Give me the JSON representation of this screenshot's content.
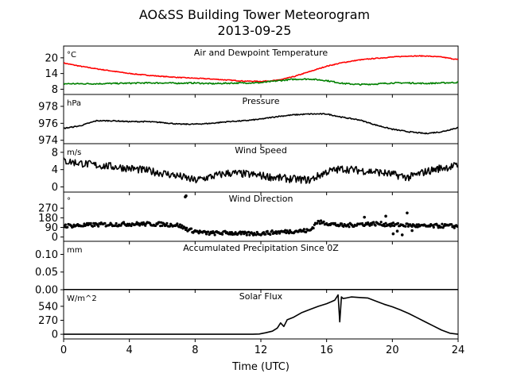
{
  "figure": {
    "title_line1": "AO&SS Building Tower Meteorogram",
    "title_line2": "2013-09-25",
    "xlabel": "Time (UTC)"
  },
  "chart_data": [
    {
      "type": "line",
      "title": "Air and Dewpoint Temperature",
      "unit": "°C",
      "ylim": [
        6,
        24.5
      ],
      "yticks": [
        8,
        14,
        20
      ],
      "xlim": [
        0,
        24
      ],
      "series": [
        {
          "color": "#ff0000",
          "noise": 0.15,
          "x": [
            0,
            1,
            2,
            3,
            4,
            5,
            6,
            7,
            8,
            9,
            10,
            11,
            12,
            13,
            14,
            15,
            16,
            17,
            18,
            19,
            20,
            21,
            22,
            23,
            24
          ],
          "y": [
            18,
            16.8,
            15.8,
            14.9,
            14,
            13.4,
            12.9,
            12.5,
            12.2,
            11.9,
            11.5,
            11.1,
            11,
            11.4,
            12.8,
            14.8,
            16.8,
            18.2,
            19.2,
            19.8,
            20.3,
            20.7,
            20.7,
            20.3,
            19.3
          ]
        },
        {
          "color": "#008000",
          "noise": 0.25,
          "x": [
            0,
            1,
            2,
            3,
            4,
            5,
            6,
            7,
            8,
            9,
            10,
            11,
            12,
            13,
            14,
            15,
            16,
            17,
            18,
            19,
            20,
            21,
            22,
            23,
            24
          ],
          "y": [
            10.1,
            10.1,
            10.1,
            10.2,
            10.3,
            10.4,
            10.4,
            10.3,
            10.4,
            10.1,
            10.3,
            10.4,
            10.5,
            11.2,
            11.8,
            11.9,
            11.3,
            10.2,
            9.8,
            10,
            10.4,
            10.4,
            10.2,
            10.4,
            10.6
          ]
        }
      ]
    },
    {
      "type": "line",
      "title": "Pressure",
      "unit": "hPa",
      "ylim": [
        973.6,
        979.4
      ],
      "yticks": [
        974,
        976,
        978
      ],
      "xlim": [
        0,
        24
      ],
      "series": [
        {
          "color": "#000000",
          "noise": 0.06,
          "x": [
            0,
            1,
            2,
            3,
            4,
            5,
            6,
            7,
            8,
            9,
            10,
            11,
            12,
            13,
            14,
            15,
            16,
            17,
            18,
            19,
            20,
            21,
            22,
            23,
            24
          ],
          "y": [
            975.4,
            975.7,
            976.3,
            976.3,
            976.2,
            976.2,
            976.1,
            975.9,
            975.9,
            976,
            976.2,
            976.3,
            976.5,
            976.8,
            977,
            977.1,
            977.1,
            976.7,
            976.4,
            975.8,
            975.3,
            975,
            974.8,
            975,
            975.5
          ]
        }
      ]
    },
    {
      "type": "line",
      "title": "Wind Speed",
      "unit": "m/s",
      "ylim": [
        -1.2,
        10
      ],
      "yticks": [
        0,
        4,
        8
      ],
      "xlim": [
        0,
        24
      ],
      "series": [
        {
          "color": "#000000",
          "noise": 0.9,
          "x": [
            0,
            1,
            2,
            3,
            4,
            5,
            6,
            7,
            8,
            9,
            10,
            11,
            12,
            13,
            14,
            15,
            16,
            17,
            18,
            19,
            20,
            21,
            22,
            23,
            24
          ],
          "y": [
            6,
            5.5,
            5,
            4.7,
            4.3,
            3.8,
            3.2,
            2.5,
            1.5,
            2.4,
            3.2,
            3,
            2.6,
            2.1,
            1.8,
            1.6,
            3.5,
            4.2,
            3.8,
            3.5,
            2.9,
            2.2,
            3.5,
            4.4,
            4.9
          ]
        }
      ]
    },
    {
      "type": "scatter",
      "title": "Wind Direction",
      "unit": "°",
      "ylim": [
        -40,
        420
      ],
      "yticks": [
        0,
        90,
        180,
        270
      ],
      "xlim": [
        0,
        24
      ],
      "series": [
        {
          "color": "#000000",
          "noise": 18,
          "x": [
            0,
            1,
            2,
            3,
            4,
            5,
            6,
            7,
            7.4,
            7.8,
            8.5,
            9,
            10,
            11,
            12,
            13,
            14,
            15,
            15.4,
            16,
            17,
            18,
            19,
            20,
            21,
            22,
            23,
            24
          ],
          "y": [
            105,
            108,
            115,
            118,
            122,
            122,
            120,
            110,
            80,
            60,
            40,
            35,
            40,
            30,
            35,
            45,
            55,
            60,
            140,
            130,
            105,
            120,
            125,
            115,
            110,
            100,
            105,
            100
          ]
        },
        {
          "color": "#000000",
          "noise": 0,
          "x": [
            7.4,
            7.45,
            18.3,
            19.6,
            20.3,
            20.6,
            20.9,
            21.2,
            20.05
          ],
          "y": [
            375,
            385,
            185,
            195,
            55,
            20,
            225,
            60,
            30
          ]
        }
      ]
    },
    {
      "type": "line",
      "title": "Accumulated Precipitation Since 0Z",
      "unit": "mm",
      "ylim": [
        0,
        0.137
      ],
      "yticks": [
        0.0,
        0.05,
        0.1
      ],
      "ytick_labels": [
        "0.00",
        "0.05",
        "0.10"
      ],
      "xlim": [
        0,
        24
      ],
      "series": [
        {
          "color": "#000000",
          "noise": 0,
          "x": [
            0,
            24
          ],
          "y": [
            0,
            0
          ]
        }
      ]
    },
    {
      "type": "line",
      "title": "Solar Flux",
      "unit": "W/m^2",
      "ylim": [
        -90,
        860
      ],
      "yticks": [
        0,
        270,
        540
      ],
      "xlim": [
        0,
        24
      ],
      "xticks": [
        0,
        4,
        8,
        12,
        16,
        20,
        24
      ],
      "series": [
        {
          "color": "#000000",
          "noise": 0,
          "x": [
            0,
            11.5,
            11.9,
            12.3,
            12.7,
            13.0,
            13.2,
            13.4,
            13.6,
            14,
            14.5,
            15,
            15.5,
            16,
            16.3,
            16.5,
            16.7,
            16.8,
            16.9,
            17.0,
            17.2,
            17.5,
            18,
            18.5,
            19,
            19.5,
            20,
            20.5,
            21,
            21.5,
            22,
            22.5,
            23,
            23.5,
            24
          ],
          "y": [
            0,
            0,
            5,
            30,
            60,
            120,
            220,
            150,
            280,
            330,
            420,
            480,
            540,
            590,
            630,
            660,
            760,
            240,
            720,
            690,
            700,
            720,
            710,
            700,
            640,
            580,
            530,
            470,
            400,
            320,
            240,
            160,
            80,
            20,
            0
          ]
        }
      ]
    }
  ]
}
